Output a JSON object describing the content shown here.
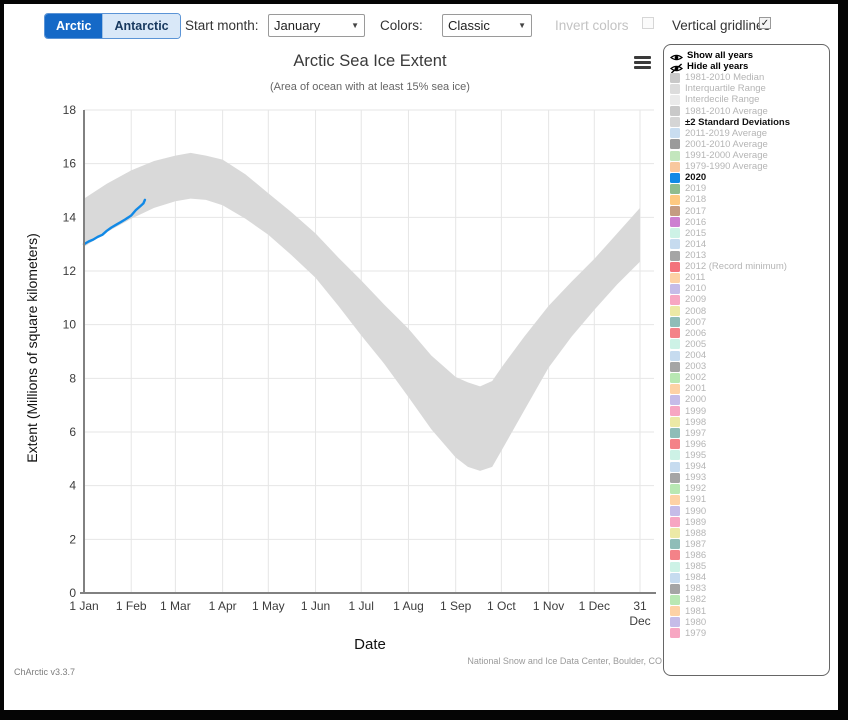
{
  "ui_colors": {
    "arctic_button_bg": "#1569c7",
    "antarctic_button_bg": "#d9e8f8",
    "band_gray": "#d9d9d9",
    "line_2020_blue": "#1189e6"
  },
  "toolbar": {
    "region_toggle": {
      "arctic_label": "Arctic",
      "antarctic_label": "Antarctic",
      "selected": "Arctic"
    },
    "start_month": {
      "label": "Start month:",
      "value": "January"
    },
    "colors": {
      "label": "Colors:",
      "value": "Classic"
    },
    "invert_colors": {
      "label": "Invert colors",
      "checked": false,
      "disabled": true
    },
    "vertical_gridlines": {
      "label": "Vertical gridlines",
      "checked": true
    }
  },
  "chart": {
    "title": "Arctic Sea Ice Extent",
    "subtitle": "(Area of ocean with at least 15% sea ice)",
    "xlabel": "Date",
    "ylabel": "Extent (Millions of square kilometers)",
    "attribution": "National Snow and Ice Data Center, Boulder, CO"
  },
  "chart_data": {
    "type": "area",
    "title": "Arctic Sea Ice Extent",
    "xlabel": "Date",
    "ylabel": "Extent (Millions of square kilometers)",
    "ylim": [
      0,
      18
    ],
    "x_unit": "day_of_year",
    "grid": true,
    "y_ticks": [
      0,
      2,
      4,
      6,
      8,
      10,
      12,
      14,
      16,
      18
    ],
    "x_ticks": [
      {
        "day": 0,
        "label": "1 Jan"
      },
      {
        "day": 31,
        "label": "1 Feb"
      },
      {
        "day": 60,
        "label": "1 Mar"
      },
      {
        "day": 91,
        "label": "1 Apr"
      },
      {
        "day": 121,
        "label": "1 May"
      },
      {
        "day": 152,
        "label": "1 Jun"
      },
      {
        "day": 182,
        "label": "1 Jul"
      },
      {
        "day": 213,
        "label": "1 Aug"
      },
      {
        "day": 244,
        "label": "1 Sep"
      },
      {
        "day": 274,
        "label": "1 Oct"
      },
      {
        "day": 305,
        "label": "1 Nov"
      },
      {
        "day": 335,
        "label": "1 Dec"
      },
      {
        "day": 365,
        "label": "31 Dec",
        "two_line": true
      }
    ],
    "band": {
      "name": "±2 Standard Deviations",
      "color": "#d9d9d9",
      "days": [
        0,
        15,
        31,
        46,
        60,
        70,
        80,
        91,
        106,
        121,
        136,
        152,
        167,
        182,
        197,
        213,
        228,
        244,
        252,
        260,
        268,
        274,
        289,
        305,
        320,
        335,
        350,
        365
      ],
      "lower": [
        12.9,
        13.45,
        13.95,
        14.35,
        14.6,
        14.7,
        14.65,
        14.45,
        13.95,
        13.35,
        12.6,
        11.75,
        10.7,
        9.6,
        8.55,
        7.3,
        6.1,
        5.05,
        4.7,
        4.55,
        4.7,
        5.3,
        6.8,
        8.4,
        9.55,
        10.55,
        11.5,
        12.35
      ],
      "upper": [
        14.7,
        15.25,
        15.75,
        16.1,
        16.3,
        16.4,
        16.3,
        16.15,
        15.6,
        14.9,
        14.2,
        13.4,
        12.5,
        11.65,
        10.75,
        9.85,
        8.85,
        8.05,
        7.85,
        7.7,
        7.9,
        8.4,
        9.55,
        10.7,
        11.6,
        12.45,
        13.4,
        14.35
      ]
    },
    "series": [
      {
        "name": "2020",
        "color": "#1189e6",
        "days": [
          0,
          3,
          6,
          9,
          12,
          15,
          18,
          21,
          24,
          27,
          31,
          34,
          37,
          39,
          40
        ],
        "values": [
          13.0,
          13.1,
          13.17,
          13.27,
          13.35,
          13.5,
          13.62,
          13.72,
          13.82,
          13.92,
          14.07,
          14.27,
          14.42,
          14.52,
          14.65
        ]
      }
    ]
  },
  "legend": {
    "actions": [
      {
        "label": "Show all years",
        "icon": "eye"
      },
      {
        "label": "Hide all years",
        "icon": "eye-slash"
      }
    ],
    "items": [
      {
        "label": "1981-2010 Median",
        "color": "#c9c9c9",
        "state": "inactive"
      },
      {
        "label": "Interquartile Range",
        "color": "#dcdcdc",
        "state": "inactive"
      },
      {
        "label": "Interdecile Range",
        "color": "#eaeaea",
        "state": "inactive"
      },
      {
        "label": "1981-2010 Average",
        "color": "#c9c9c9",
        "state": "inactive"
      },
      {
        "label": "±2 Standard Deviations",
        "color": "#d5d5d5",
        "state": "active"
      },
      {
        "label": "2011-2019 Average",
        "color": "#c9ddf0",
        "state": "inactive"
      },
      {
        "label": "2001-2010 Average",
        "color": "#9b9b9b",
        "state": "inactive"
      },
      {
        "label": "1991-2000 Average",
        "color": "#c3e6bd",
        "state": "inactive"
      },
      {
        "label": "1979-1990 Average",
        "color": "#f8c89e",
        "state": "inactive"
      },
      {
        "label": "2020",
        "color": "#1189e6",
        "state": "active"
      },
      {
        "label": "2019",
        "color": "#8fbc8f",
        "state": "inactive"
      },
      {
        "label": "2018",
        "color": "#fdc981",
        "state": "inactive"
      },
      {
        "label": "2017",
        "color": "#c49c82",
        "state": "inactive"
      },
      {
        "label": "2016",
        "color": "#cd7fd1",
        "state": "inactive"
      },
      {
        "label": "2015",
        "color": "#cdf2e6",
        "state": "inactive"
      },
      {
        "label": "2014",
        "color": "#c6dbef",
        "state": "inactive"
      },
      {
        "label": "2013",
        "color": "#a5a5a5",
        "state": "inactive"
      },
      {
        "label": "2012 (Record minimum)",
        "color": "#f4737c",
        "state": "inactive"
      },
      {
        "label": "2011",
        "color": "#fdd2a5",
        "state": "inactive"
      },
      {
        "label": "2010",
        "color": "#c5bce8",
        "state": "inactive"
      },
      {
        "label": "2009",
        "color": "#f7a6c2",
        "state": "inactive"
      },
      {
        "label": "2008",
        "color": "#ece9a6",
        "state": "inactive"
      },
      {
        "label": "2007",
        "color": "#8fbdb8",
        "state": "inactive"
      },
      {
        "label": "2006",
        "color": "#f48288",
        "state": "inactive"
      },
      {
        "label": "2005",
        "color": "#cdf2e6",
        "state": "inactive"
      },
      {
        "label": "2004",
        "color": "#c6dbef",
        "state": "inactive"
      },
      {
        "label": "2003",
        "color": "#a5a5a5",
        "state": "inactive"
      },
      {
        "label": "2002",
        "color": "#b8e8b3",
        "state": "inactive"
      },
      {
        "label": "2001",
        "color": "#fdd2a5",
        "state": "inactive"
      },
      {
        "label": "2000",
        "color": "#c5bce8",
        "state": "inactive"
      },
      {
        "label": "1999",
        "color": "#f7a6c2",
        "state": "inactive"
      },
      {
        "label": "1998",
        "color": "#ece9a6",
        "state": "inactive"
      },
      {
        "label": "1997",
        "color": "#8fbdb8",
        "state": "inactive"
      },
      {
        "label": "1996",
        "color": "#f48288",
        "state": "inactive"
      },
      {
        "label": "1995",
        "color": "#cdf2e6",
        "state": "inactive"
      },
      {
        "label": "1994",
        "color": "#c6dbef",
        "state": "inactive"
      },
      {
        "label": "1993",
        "color": "#a5a5a5",
        "state": "inactive"
      },
      {
        "label": "1992",
        "color": "#b8e8b3",
        "state": "inactive"
      },
      {
        "label": "1991",
        "color": "#fdd2a5",
        "state": "inactive"
      },
      {
        "label": "1990",
        "color": "#c5bce8",
        "state": "inactive"
      },
      {
        "label": "1989",
        "color": "#f7a6c2",
        "state": "inactive"
      },
      {
        "label": "1988",
        "color": "#ece9a6",
        "state": "inactive"
      },
      {
        "label": "1987",
        "color": "#8fbdb8",
        "state": "inactive"
      },
      {
        "label": "1986",
        "color": "#f48288",
        "state": "inactive"
      },
      {
        "label": "1985",
        "color": "#cdf2e6",
        "state": "inactive"
      },
      {
        "label": "1984",
        "color": "#c6dbef",
        "state": "inactive"
      },
      {
        "label": "1983",
        "color": "#a5a5a5",
        "state": "inactive"
      },
      {
        "label": "1982",
        "color": "#b8e8b3",
        "state": "inactive"
      },
      {
        "label": "1981",
        "color": "#fdd2a5",
        "state": "inactive"
      },
      {
        "label": "1980",
        "color": "#c5bce8",
        "state": "inactive"
      },
      {
        "label": "1979",
        "color": "#f7a6c2",
        "state": "inactive"
      }
    ]
  },
  "footer": {
    "version_label": "ChArctic v3.3.7"
  }
}
